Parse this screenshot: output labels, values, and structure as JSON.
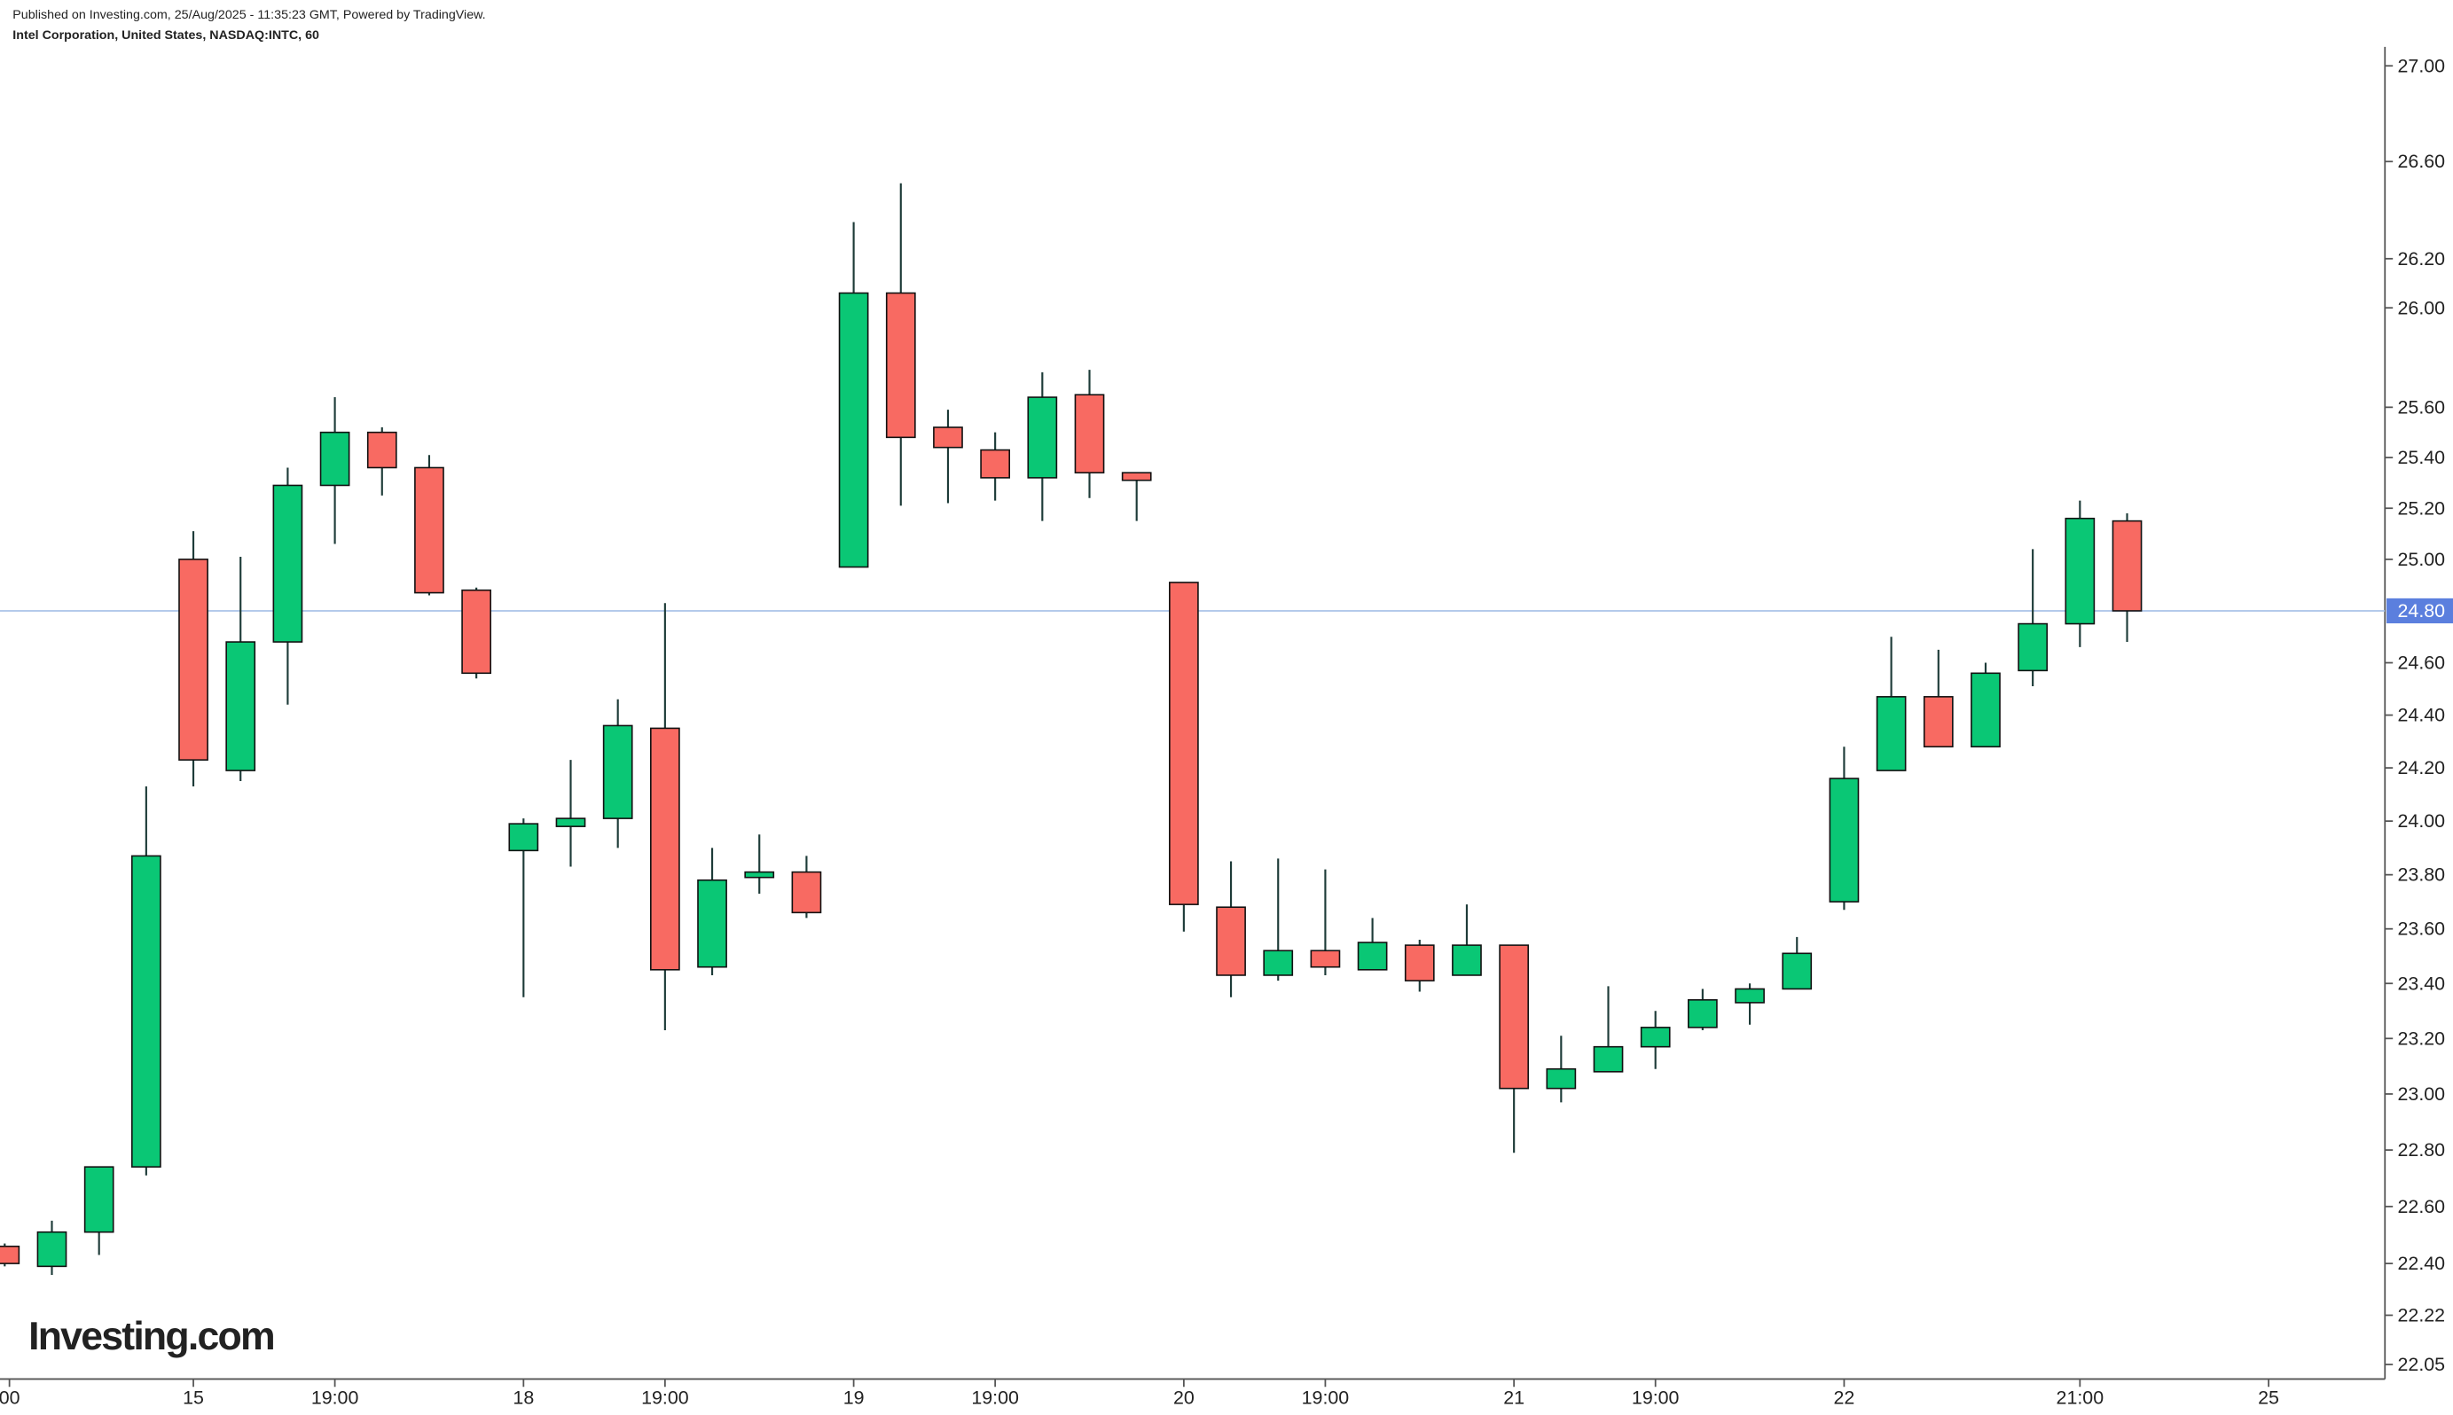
{
  "chart_data": {
    "type": "candlestick",
    "published": "Published on Investing.com, 25/Aug/2025 - 11:35:23 GMT, Powered by TradingView.",
    "title": "Intel Corporation, United States, NASDAQ:INTC, 60",
    "logo": "Investing.com",
    "x": [
      0,
      1,
      2,
      3,
      4,
      5,
      6,
      7,
      8,
      9,
      10,
      11,
      12,
      13,
      14,
      15,
      16,
      17,
      18,
      19,
      20,
      21,
      22,
      23,
      24,
      25,
      26,
      27,
      28,
      29,
      30,
      31,
      32,
      33,
      34,
      35,
      36,
      37,
      38,
      39,
      40,
      41,
      42,
      43,
      44,
      45
    ],
    "open": [
      22.46,
      22.39,
      22.51,
      22.74,
      25.0,
      24.19,
      24.68,
      25.29,
      25.5,
      25.36,
      24.88,
      23.89,
      23.98,
      24.01,
      24.35,
      23.46,
      23.79,
      23.81,
      24.97,
      26.06,
      25.52,
      25.43,
      25.32,
      25.65,
      25.34,
      24.91,
      23.68,
      23.43,
      23.52,
      23.45,
      23.54,
      23.43,
      23.54,
      23.02,
      23.08,
      23.17,
      23.24,
      23.33,
      23.38,
      23.7,
      24.19,
      24.47,
      24.28,
      24.57,
      24.75,
      25.15
    ],
    "high": [
      22.47,
      22.55,
      22.74,
      24.13,
      25.11,
      25.01,
      25.36,
      25.64,
      25.52,
      25.41,
      24.89,
      24.01,
      24.23,
      24.46,
      24.83,
      23.9,
      23.95,
      23.87,
      26.35,
      26.51,
      25.59,
      25.5,
      25.74,
      25.75,
      25.34,
      24.91,
      23.85,
      23.86,
      23.82,
      23.64,
      23.56,
      23.69,
      23.54,
      23.21,
      23.39,
      23.3,
      23.38,
      23.4,
      23.57,
      24.28,
      24.7,
      24.65,
      24.6,
      25.04,
      25.23,
      25.18
    ],
    "low": [
      22.39,
      22.36,
      22.43,
      22.71,
      24.13,
      24.15,
      24.44,
      25.06,
      25.25,
      24.86,
      24.54,
      23.35,
      23.83,
      23.9,
      23.23,
      23.43,
      23.73,
      23.64,
      24.97,
      25.21,
      25.22,
      25.23,
      25.15,
      25.24,
      25.15,
      23.59,
      23.35,
      23.41,
      23.43,
      23.45,
      23.37,
      23.43,
      22.79,
      22.97,
      23.08,
      23.09,
      23.23,
      23.25,
      23.38,
      23.67,
      24.19,
      24.28,
      24.28,
      24.51,
      24.66,
      24.68
    ],
    "close": [
      22.4,
      22.51,
      22.74,
      23.87,
      24.23,
      24.68,
      25.29,
      25.5,
      25.36,
      24.87,
      24.56,
      23.99,
      24.01,
      24.36,
      23.45,
      23.78,
      23.81,
      23.66,
      26.06,
      25.48,
      25.44,
      25.32,
      25.64,
      25.34,
      25.31,
      23.69,
      23.43,
      23.52,
      23.46,
      23.55,
      23.41,
      23.54,
      23.02,
      23.09,
      23.17,
      23.24,
      23.34,
      23.38,
      23.51,
      24.16,
      24.47,
      24.28,
      24.56,
      24.75,
      25.16,
      24.8
    ],
    "up_color": "#0ac775",
    "down_color": "#f86a62",
    "price_line": {
      "values": [
        24.8
      ],
      "value_labels": [
        "24.80"
      ],
      "color": "#5b7fde"
    },
    "log_scale": true,
    "xlim": [
      -0.1,
      50.4
    ],
    "ylim": [
      22.0,
      27.06
    ],
    "yticks": [
      {
        "value": 27,
        "label": "27.00"
      },
      {
        "value": 26.6,
        "label": "26.60"
      },
      {
        "value": 26.2,
        "label": "26.20"
      },
      {
        "value": 26,
        "label": "26.00"
      },
      {
        "value": 25.6,
        "label": "25.60"
      },
      {
        "value": 25.4,
        "label": "25.40"
      },
      {
        "value": 25.2,
        "label": "25.20"
      },
      {
        "value": 25,
        "label": "25.00"
      },
      {
        "value": 24.6,
        "label": "24.60"
      },
      {
        "value": 24.4,
        "label": "24.40"
      },
      {
        "value": 24.2,
        "label": "24.20"
      },
      {
        "value": 24,
        "label": "24.00"
      },
      {
        "value": 23.8,
        "label": "23.80"
      },
      {
        "value": 23.6,
        "label": "23.60"
      },
      {
        "value": 23.4,
        "label": "23.40"
      },
      {
        "value": 23.2,
        "label": "23.20"
      },
      {
        "value": 23,
        "label": "23.00"
      },
      {
        "value": 22.8,
        "label": "22.80"
      },
      {
        "value": 22.6,
        "label": "22.60"
      },
      {
        "value": 22.4,
        "label": "22.40"
      },
      22.22,
      {
        "value": 22.05,
        "label": "22.05"
      }
    ],
    "xticks": [
      {
        "value": 0.1,
        "label": "00"
      },
      {
        "value": 4,
        "label": "15"
      },
      {
        "value": 7,
        "label": "19:00"
      },
      {
        "value": 11,
        "label": "18"
      },
      {
        "value": 14,
        "label": "19:00"
      },
      {
        "value": 18,
        "label": "19"
      },
      {
        "value": 21,
        "label": "19:00"
      },
      {
        "value": 25,
        "label": "20"
      },
      {
        "value": 28,
        "label": "19:00"
      },
      {
        "value": 32,
        "label": "21"
      },
      {
        "value": 35,
        "label": "19:00"
      },
      {
        "value": 39,
        "label": "22"
      },
      {
        "value": 44,
        "label": "21:00"
      },
      {
        "value": 48,
        "label": "25"
      }
    ]
  }
}
